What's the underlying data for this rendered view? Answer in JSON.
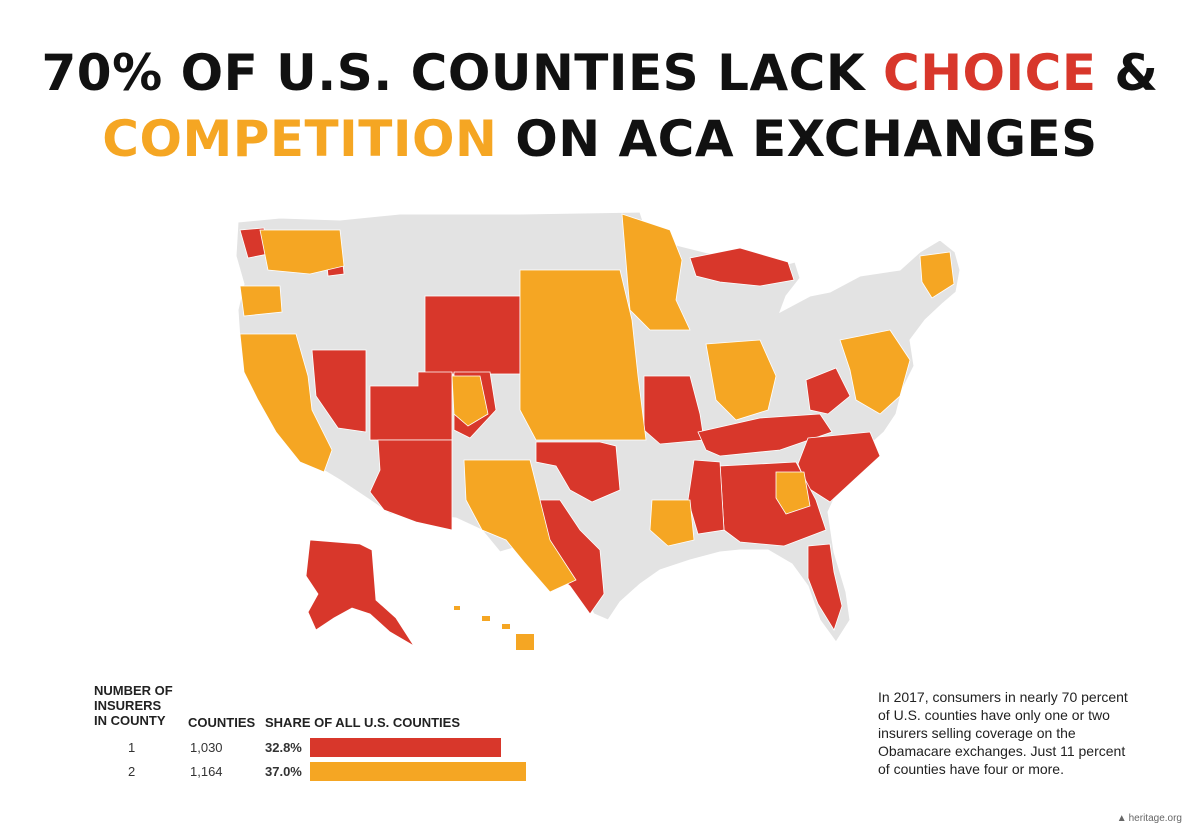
{
  "title": {
    "line1": {
      "pct": "70%",
      "mid": " OF U.S. COUNTIES LACK ",
      "choice": "CHOICE",
      "amp": " &"
    },
    "line2": {
      "competition": "COMPETITION",
      "on": " ON ",
      "aca": "ACA EXCHANGES"
    }
  },
  "colors": {
    "one_insurer": "#d8372b",
    "two_insurers": "#f5a623",
    "three_plus": "#e3e3e3",
    "border": "#ffffff"
  },
  "chart_data": {
    "type": "table",
    "columns": [
      "NUMBER OF INSURERS IN COUNTY",
      "COUNTIES",
      "SHARE OF ALL U.S. COUNTIES"
    ],
    "rows": [
      {
        "insurers": "1",
        "counties": "1,030",
        "share_label": "32.8%",
        "share": 32.8,
        "color": "#d8372b"
      },
      {
        "insurers": "2",
        "counties": "1,164",
        "share_label": "37.0%",
        "share": 37.0,
        "color": "#f5a623"
      }
    ]
  },
  "legend": {
    "col1": "NUMBER OF\nINSURERS\nIN COUNTY",
    "col2": "COUNTIES",
    "col3": "SHARE OF ALL U.S. COUNTIES"
  },
  "note": "In 2017, consumers in nearly 70 percent of U.S. counties have only one or two insurers selling coverage on the Obamacare exchanges. Just 11 percent of counties have four or more.",
  "credit": "heritage.org"
}
